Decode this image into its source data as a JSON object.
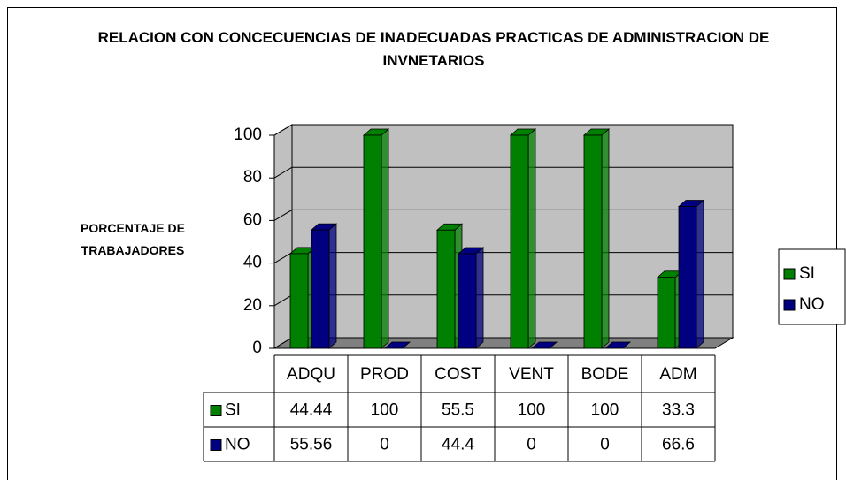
{
  "chart_data": {
    "type": "bar3d",
    "title": "RELACION CON CONCECUENCIAS DE INADECUADAS PRACTICAS DE ADMINISTRACION DE INVNETARIOS",
    "ylabel": "PORCENTAJE DE TRABAJADORES",
    "categories": [
      "ADQU",
      "PROD",
      "COST",
      "VENT",
      "BODE",
      "ADM"
    ],
    "series": [
      {
        "name": "SI",
        "color": "#008000",
        "values": [
          44.44,
          100,
          55.5,
          100,
          100,
          33.3
        ]
      },
      {
        "name": "NO",
        "color": "#000080",
        "values": [
          55.56,
          0,
          44.4,
          0,
          0,
          66.6
        ]
      }
    ],
    "ylim": [
      0,
      100
    ],
    "yticks": [
      0,
      20,
      40,
      60,
      80,
      100
    ],
    "grid": true,
    "legend": "right"
  }
}
